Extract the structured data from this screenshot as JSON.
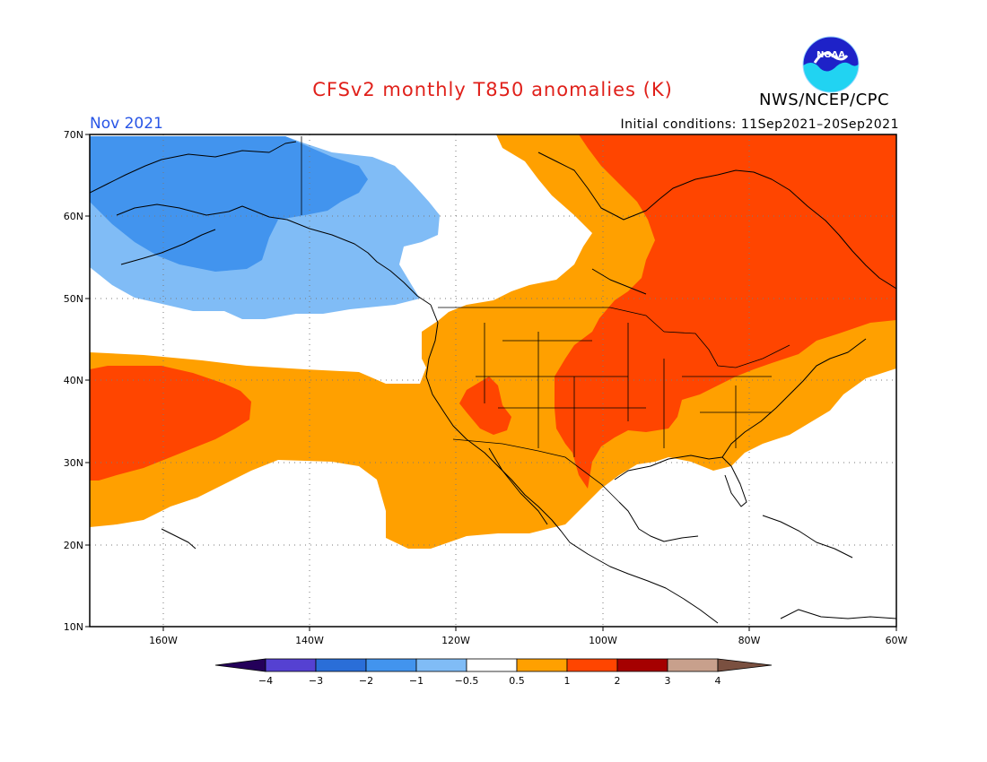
{
  "header": {
    "title": "CFSv2 monthly T850 anomalies (K)",
    "agency": "NWS/NCEP/CPC",
    "logo_text": "NOAA",
    "month": "Nov 2021",
    "initial_conditions": "Initial conditions: 11Sep2021–20Sep2021"
  },
  "map": {
    "lat_labels": [
      "70N",
      "60N",
      "50N",
      "40N",
      "30N",
      "20N",
      "10N"
    ],
    "lon_labels": [
      "160W",
      "140W",
      "120W",
      "100W",
      "80W",
      "60W"
    ]
  },
  "colorbar": {
    "tick_labels": [
      "−4",
      "−3",
      "−2",
      "−1",
      "−0.5",
      "0.5",
      "1",
      "2",
      "3",
      "4"
    ],
    "colors": {
      "below_-4": "#24005a",
      "-4_-3": "#5541d2",
      "-3_-2": "#2a6ed8",
      "-2_-1": "#4294ee",
      "-1_-0.5": "#80bcf6",
      "-0.5_0.5": "#ffffff",
      "0.5_1": "#ffa000",
      "1_2": "#ff4500",
      "2_3": "#a50000",
      "3_4": "#c8a08c",
      "above_4": "#7a5040"
    }
  }
}
